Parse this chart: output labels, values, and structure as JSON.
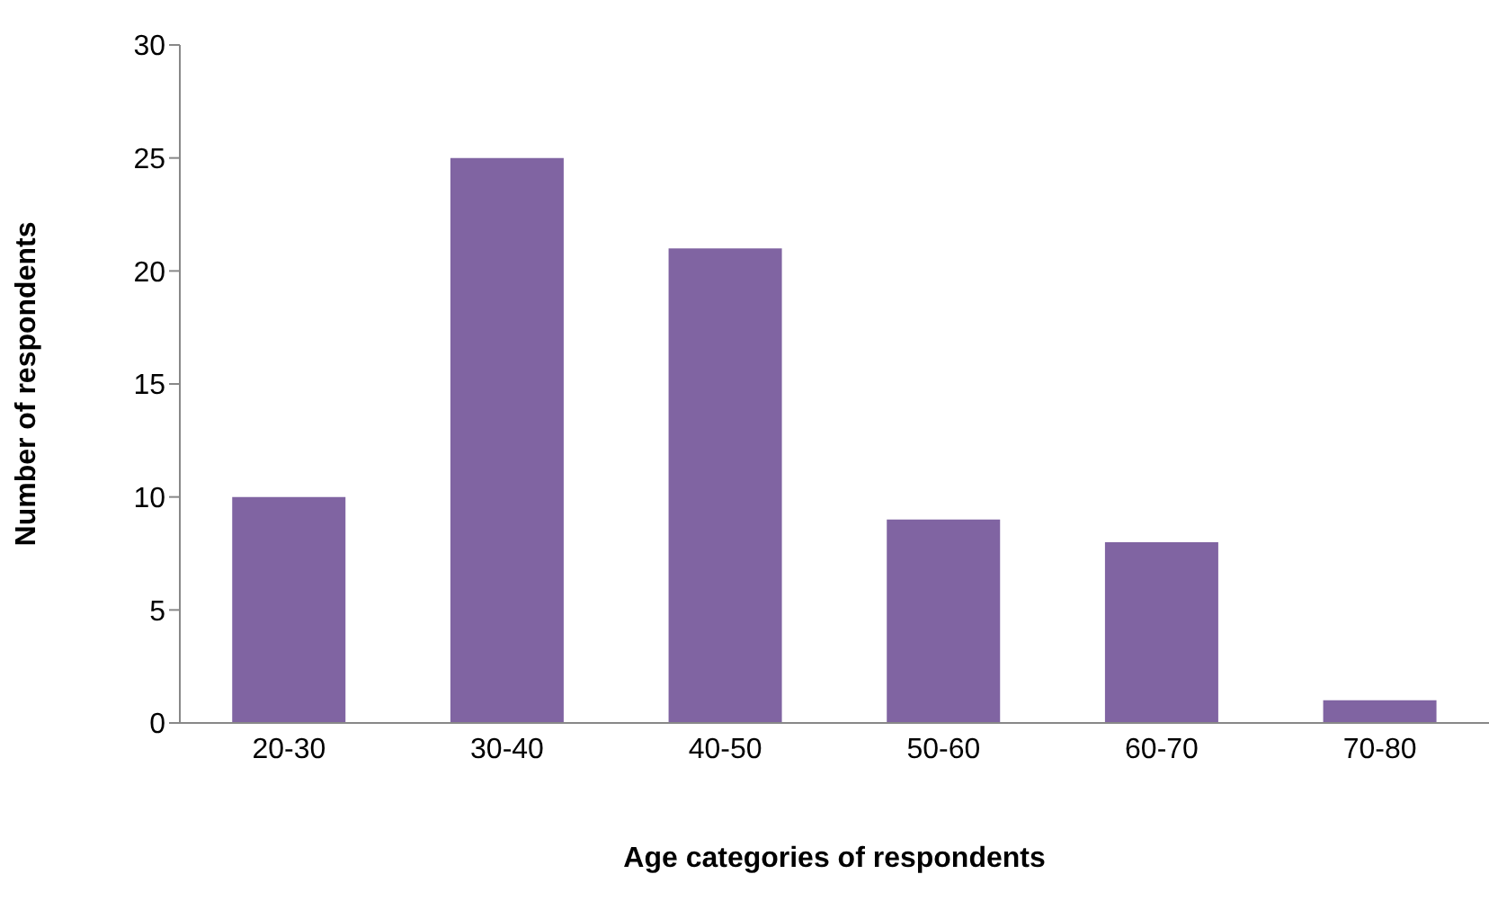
{
  "chart_data": {
    "type": "bar",
    "xlabel": "Age categories of respondents",
    "ylabel": "Number of respondents",
    "categories": [
      "20-30",
      "30-40",
      "40-50",
      "50-60",
      "60-70",
      "70-80"
    ],
    "values": [
      10,
      25,
      21,
      9,
      8,
      1
    ],
    "color": "#8064a2",
    "ylim": [
      0,
      30
    ],
    "yticks": [
      0,
      5,
      10,
      15,
      20,
      25,
      30
    ],
    "grid": false,
    "legend": false
  }
}
